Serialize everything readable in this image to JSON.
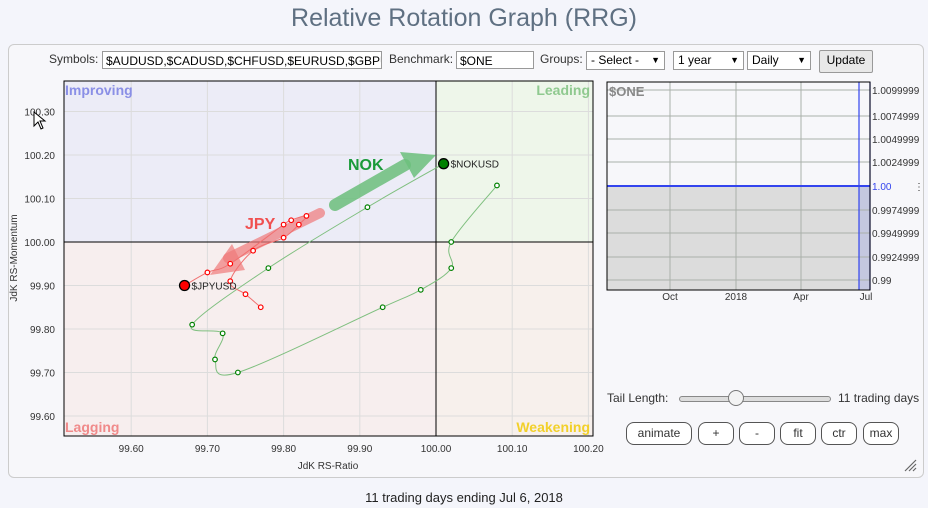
{
  "title": "Relative Rotation Graph (RRG)",
  "toolbar": {
    "symbols_label": "Symbols:",
    "symbols_value": "$AUDUSD,$CADUSD,$CHFUSD,$EURUSD,$GBPUSD",
    "benchmark_label": "Benchmark:",
    "benchmark_value": "$ONE",
    "groups_label": "Groups:",
    "groups_value": "- Select -",
    "period_value": "1 year",
    "frequency_value": "Daily",
    "update_label": "Update"
  },
  "chart_data": {
    "type": "scatter",
    "xlabel": "JdK RS-Ratio",
    "ylabel": "JdK RS-Momentum",
    "xlim": [
      99.51,
      100.205
    ],
    "ylim": [
      99.555,
      100.37
    ],
    "x_ticks": [
      "99.60",
      "99.70",
      "99.80",
      "99.90",
      "100.00",
      "100.10",
      "100.20"
    ],
    "y_ticks": [
      "99.60",
      "99.70",
      "99.80",
      "99.90",
      "100.00",
      "100.10",
      "100.20",
      "100.30"
    ],
    "center": [
      100,
      100
    ],
    "quadrants": {
      "improving": "Improving",
      "leading": "Leading",
      "lagging": "Lagging",
      "weakening": "Weakening"
    },
    "quadrant_colors": {
      "improving": "#8a8fe6",
      "leading": "#8fc98f",
      "lagging": "#f08a8a",
      "weakening": "#f2d02a"
    },
    "series": [
      {
        "name": "$NOKUSD",
        "color": "#008000",
        "line_color": "#7fbf7f",
        "x": [
          100.08,
          100.02,
          100.02,
          99.98,
          99.93,
          99.74,
          99.71,
          99.72,
          99.68,
          99.78,
          99.91,
          100.01
        ],
        "y": [
          100.13,
          100.0,
          99.94,
          99.89,
          99.85,
          99.7,
          99.73,
          99.79,
          99.81,
          99.94,
          100.08,
          100.18
        ]
      },
      {
        "name": "$JPYUSD",
        "color": "#ff0000",
        "line_color": "#f07070",
        "x": [
          99.77,
          99.75,
          99.73,
          99.76,
          99.8,
          99.82,
          99.83,
          99.81,
          99.8,
          99.73,
          99.7,
          99.67
        ],
        "y": [
          99.85,
          99.88,
          99.91,
          99.98,
          100.01,
          100.04,
          100.06,
          100.05,
          100.04,
          99.95,
          99.93,
          99.9
        ]
      }
    ],
    "annotations": [
      {
        "text": "NOK",
        "color": "#1a9a3a"
      },
      {
        "text": "JPY",
        "color": "#f05050"
      }
    ]
  },
  "mini_chart": {
    "title": "$ONE",
    "y_ticks": [
      "1.0099999",
      "1.0074999",
      "1.0049999",
      "1.0024999",
      "1.00",
      "0.9974999",
      "0.9949999",
      "0.9924999",
      "0.99"
    ],
    "x_ticks": [
      "Oct",
      "2018",
      "Apr",
      "Jul"
    ],
    "value": 1.0,
    "accent": "#3344ee"
  },
  "controls": {
    "tail_label": "Tail Length:",
    "tail_value": 11,
    "tail_max": 30,
    "tail_days": "11 trading days",
    "buttons": [
      "animate",
      "+",
      "-",
      "fit",
      "ctr",
      "max"
    ]
  },
  "footer": "11 trading days ending Jul 6, 2018"
}
